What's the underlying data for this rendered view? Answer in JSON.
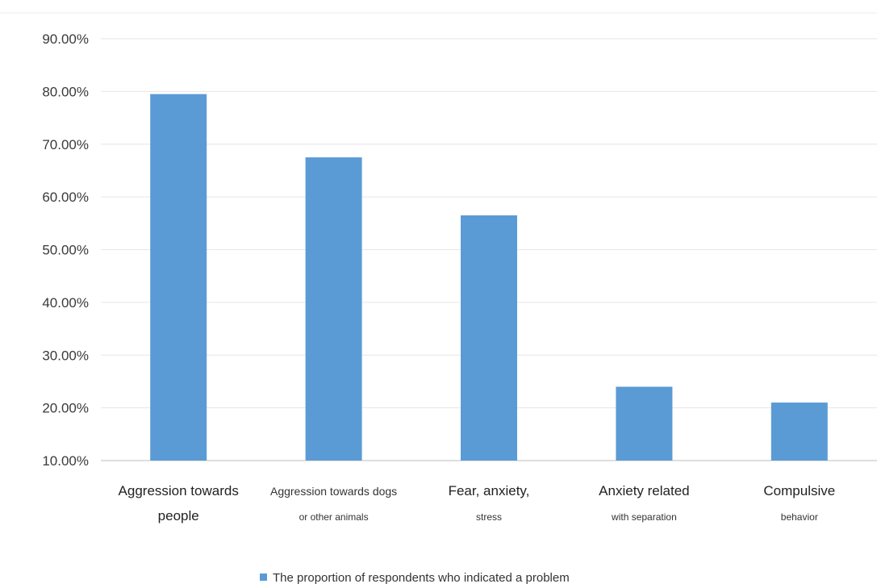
{
  "chart_data": {
    "type": "bar",
    "categories": [
      {
        "line1": "Aggression towards",
        "line2": "people",
        "line2_small": false
      },
      {
        "line1": "Aggression towards dogs",
        "line2": "or other animals",
        "line2_small": true,
        "line1_small": true
      },
      {
        "line1": "Fear, anxiety,",
        "line2": "stress",
        "line2_small": true
      },
      {
        "line1": "Anxiety related",
        "line2": "with separation",
        "line2_small": true
      },
      {
        "line1": "Compulsive",
        "line2": "behavior",
        "line2_small": true
      }
    ],
    "series": [
      {
        "name": "The proportion of respondents who indicated a problem",
        "values": [
          79.5,
          67.5,
          56.5,
          24.0,
          21.0
        ]
      }
    ],
    "yticks": [
      "10.00%",
      "20.00%",
      "30.00%",
      "40.00%",
      "50.00%",
      "60.00%",
      "70.00%",
      "80.00%",
      "90.00%"
    ],
    "ylim": [
      10,
      90
    ],
    "grid": true,
    "legend_position": "bottom",
    "colors": {
      "bar": "#5b9bd5",
      "grid": "#e6e6e6",
      "axis": "#d4d4d4"
    }
  }
}
